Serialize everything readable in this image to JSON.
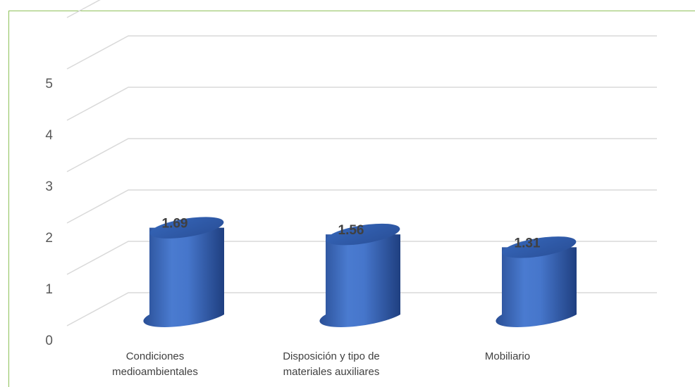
{
  "chart_data": {
    "type": "bar",
    "style": "3d-cylinder",
    "categories": [
      [
        "Condiciones",
        "medioambientales"
      ],
      [
        "Disposición y tipo de",
        "materiales auxiliares"
      ],
      [
        "Mobiliario"
      ]
    ],
    "values": [
      1.69,
      1.56,
      1.31
    ],
    "value_labels": [
      "1.69",
      "1.56",
      "1.31"
    ],
    "yticks": [
      "0",
      "1",
      "2",
      "3",
      "4",
      "5"
    ],
    "ylim": [
      0,
      5
    ],
    "grid": true,
    "title": "",
    "xlabel": "",
    "ylabel": "",
    "colors": {
      "bar": "#4472c4",
      "bar_dark": "#2f5597",
      "grid": "#d9d9d9",
      "frame": "#8fc15a"
    }
  }
}
